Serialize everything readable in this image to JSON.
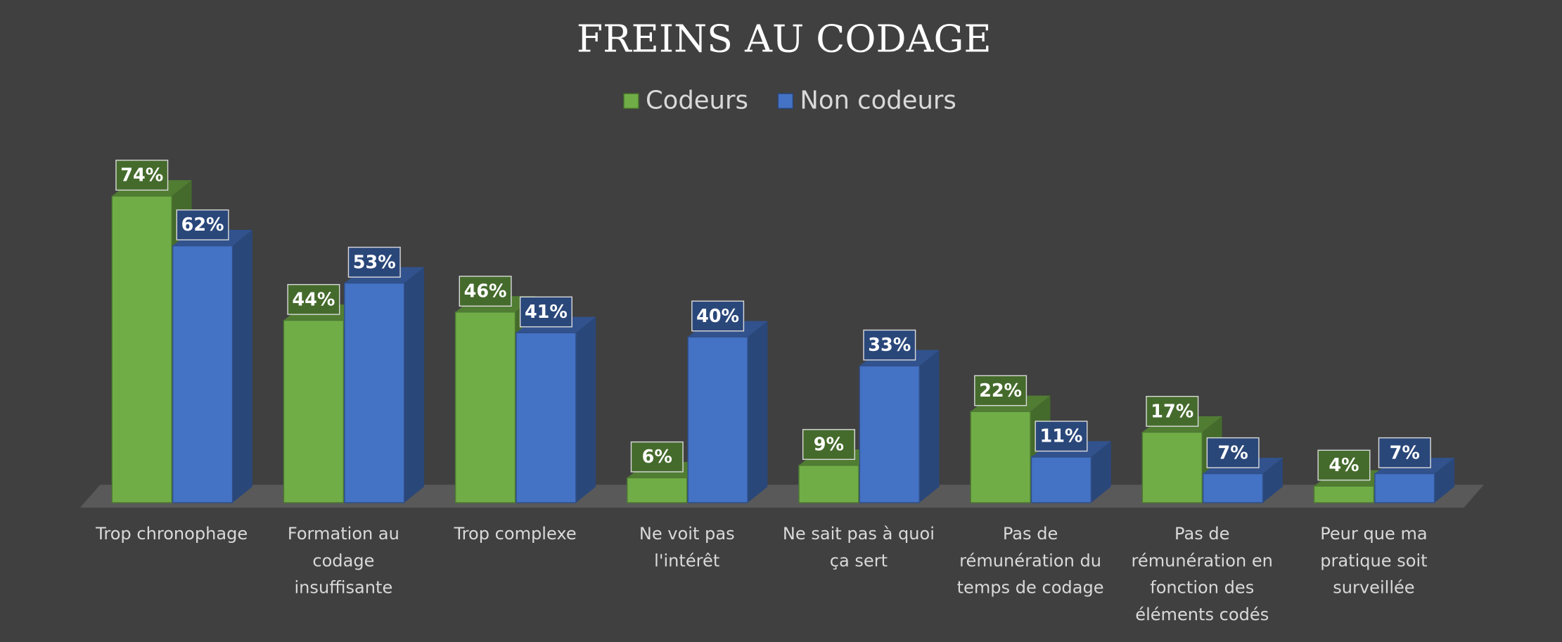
{
  "chart_data": {
    "type": "bar3d",
    "title": "FREINS AU CODAGE",
    "categories": [
      "Trop chronophage",
      "Formation au codage insuffisante",
      "Trop complexe",
      "Ne voit pas l'intérêt",
      "Ne sait pas à quoi ça sert",
      "Pas de rémunération du temps de codage",
      "Pas de rémunération en fonction des éléments codés",
      "Peur que ma pratique soit surveillée"
    ],
    "series": [
      {
        "name": "Codeurs",
        "color": "#70ad47",
        "values": [
          74,
          44,
          46,
          6,
          9,
          22,
          17,
          4
        ],
        "value_labels": [
          "74%",
          "44%",
          "46%",
          "6%",
          "9%",
          "22%",
          "17%",
          "4%"
        ]
      },
      {
        "name": "Non codeurs",
        "color": "#4472c4",
        "values": [
          62,
          53,
          41,
          40,
          33,
          11,
          7,
          7
        ],
        "value_labels": [
          "62%",
          "53%",
          "41%",
          "40%",
          "33%",
          "11%",
          "7%",
          "7%"
        ]
      }
    ],
    "legend": "top"
  }
}
